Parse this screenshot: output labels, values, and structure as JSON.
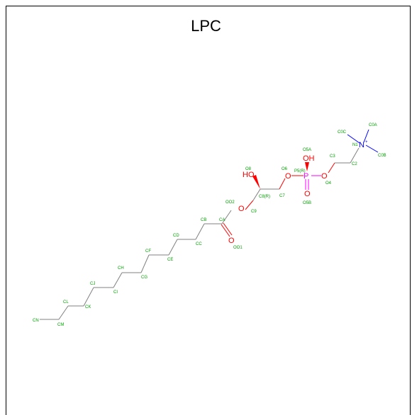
{
  "title": "LPC",
  "colors": {
    "bond": "#808080",
    "atom_label": "#00a000",
    "oxygen": "#ff0000",
    "phosphorus": "#ff00ff",
    "nitrogen": "#0000ff"
  },
  "elements": {
    "OH_left": "HO",
    "OH_phos": "OH",
    "O": "O",
    "P": "P",
    "N": "N"
  },
  "atom_labels": {
    "CN": "CN",
    "CM": "CM",
    "CL": "CL",
    "CK": "CK",
    "CJ": "CJ",
    "CI": "CI",
    "CH": "CH",
    "CG": "CG",
    "CF": "CF",
    "CE": "CE",
    "CD": "CD",
    "CC": "CC",
    "CB": "CB",
    "CA": "CA",
    "OO1": "OO1",
    "OO2": "OO2",
    "C9": "C9",
    "C8R": "C8(R)",
    "O8": "O8",
    "C7": "C7",
    "O6": "O6",
    "P5R": "P5(R)",
    "O5A": "O5A",
    "O5B": "O5B",
    "O4": "O4",
    "C3": "C3",
    "C2": "C2",
    "N1": "N1",
    "C0A": "C0A",
    "C0B": "C0B",
    "C0C": "C0C"
  }
}
